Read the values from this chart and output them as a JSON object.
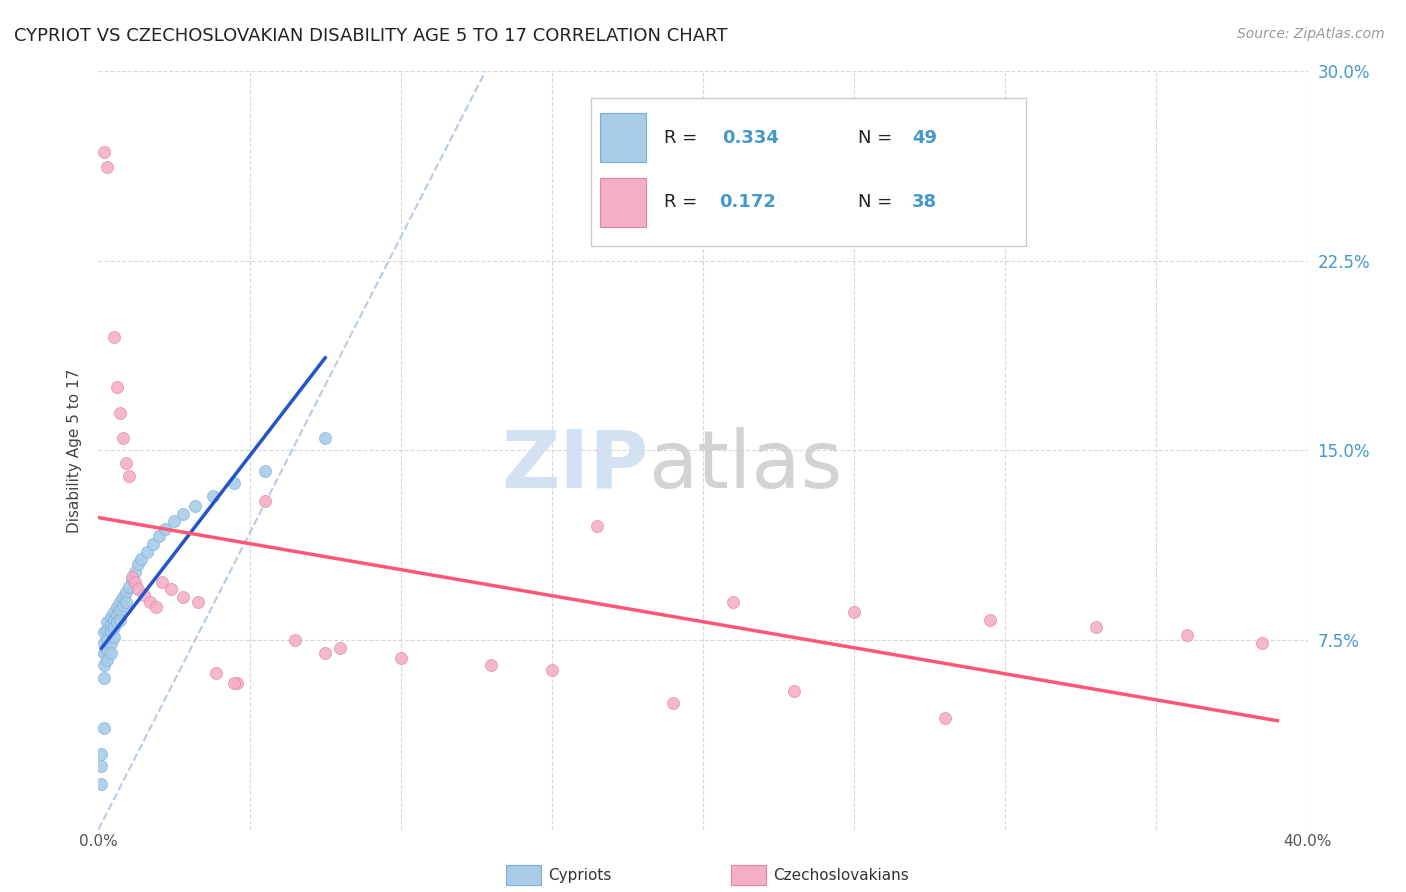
{
  "title": "CYPRIOT VS CZECHOSLOVAKIAN DISABILITY AGE 5 TO 17 CORRELATION CHART",
  "source": "Source: ZipAtlas.com",
  "ylabel": "Disability Age 5 to 17",
  "xlim": [
    0.0,
    0.4
  ],
  "ylim": [
    0.0,
    0.3
  ],
  "background_color": "#ffffff",
  "blue_scatter_color": "#a8cce8",
  "blue_scatter_edge": "#7aade0",
  "pink_scatter_color": "#f4afc5",
  "pink_scatter_edge": "#e880a8",
  "blue_line_color": "#2255cc",
  "pink_line_color": "#ff5577",
  "dashed_line_color": "#b8cce0",
  "grid_color": "#d8d8d8",
  "right_axis_color": "#4499cc",
  "legend_text_color": "#222222",
  "legend_R_color": "#4499cc",
  "watermark_zip_color": "#ccddf0",
  "watermark_atlas_color": "#cccccc",
  "cypriot_x": [
    0.001,
    0.001,
    0.001,
    0.002,
    0.002,
    0.002,
    0.002,
    0.002,
    0.003,
    0.003,
    0.003,
    0.003,
    0.004,
    0.004,
    0.004,
    0.004,
    0.004,
    0.005,
    0.005,
    0.005,
    0.005,
    0.005,
    0.006,
    0.006,
    0.006,
    0.007,
    0.007,
    0.007,
    0.008,
    0.008,
    0.009,
    0.009,
    0.01,
    0.011,
    0.012,
    0.013,
    0.014,
    0.016,
    0.018,
    0.02,
    0.022,
    0.025,
    0.028,
    0.032,
    0.038,
    0.045,
    0.055,
    0.07,
    0.09
  ],
  "cypriot_y": [
    0.03,
    0.025,
    0.018,
    0.075,
    0.072,
    0.068,
    0.06,
    0.035,
    0.08,
    0.078,
    0.074,
    0.065,
    0.083,
    0.08,
    0.077,
    0.074,
    0.07,
    0.085,
    0.082,
    0.079,
    0.076,
    0.073,
    0.087,
    0.084,
    0.081,
    0.09,
    0.087,
    0.083,
    0.092,
    0.088,
    0.094,
    0.09,
    0.096,
    0.098,
    0.1,
    0.103,
    0.105,
    0.108,
    0.111,
    0.114,
    0.116,
    0.119,
    0.122,
    0.125,
    0.128,
    0.132,
    0.136,
    0.142,
    0.15
  ],
  "czechoslovakian_x": [
    0.002,
    0.004,
    0.006,
    0.007,
    0.008,
    0.009,
    0.01,
    0.011,
    0.012,
    0.013,
    0.014,
    0.016,
    0.018,
    0.02,
    0.022,
    0.025,
    0.028,
    0.032,
    0.038,
    0.045,
    0.052,
    0.06,
    0.075,
    0.09,
    0.11,
    0.13,
    0.16,
    0.19,
    0.22,
    0.26,
    0.29,
    0.32,
    0.35,
    0.37,
    0.385,
    0.2,
    0.24,
    0.31
  ],
  "czechoslovakian_y": [
    0.268,
    0.258,
    0.1,
    0.095,
    0.092,
    0.09,
    0.088,
    0.085,
    0.082,
    0.08,
    0.078,
    0.076,
    0.1,
    0.097,
    0.094,
    0.092,
    0.09,
    0.088,
    0.062,
    0.058,
    0.13,
    0.075,
    0.072,
    0.07,
    0.068,
    0.066,
    0.064,
    0.12,
    0.09,
    0.086,
    0.083,
    0.08,
    0.077,
    0.075,
    0.073,
    0.05,
    0.055,
    0.042
  ]
}
